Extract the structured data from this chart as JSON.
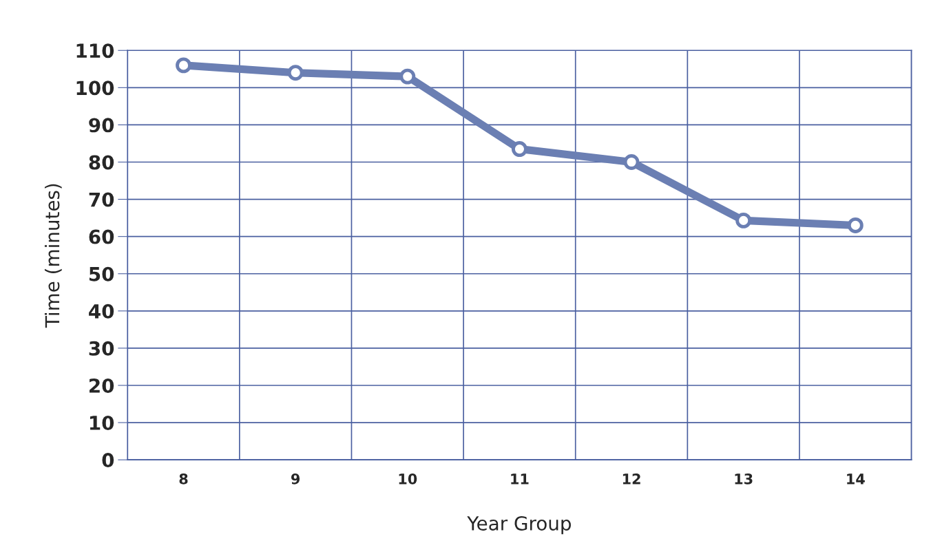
{
  "chart_data": {
    "type": "line",
    "xlabel": "Year Group",
    "ylabel": "Time (minutes)",
    "categories": [
      "8",
      "9",
      "10",
      "11",
      "12",
      "13",
      "14"
    ],
    "series": [
      {
        "color": "#6b7fb3",
        "values": [
          106,
          104,
          103,
          83.5,
          80,
          64.3,
          63
        ]
      }
    ],
    "ylim": [
      0,
      110
    ],
    "yticks": [
      0,
      10,
      20,
      30,
      40,
      50,
      60,
      70,
      80,
      90,
      100,
      110
    ],
    "grid": true,
    "marker": "circle",
    "line_style": "solid"
  }
}
